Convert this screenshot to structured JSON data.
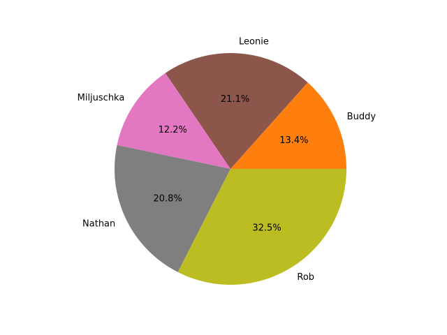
{
  "chart_data": {
    "type": "pie",
    "title": "",
    "labels": [
      "Buddy",
      "Leonie",
      "Miljuschka",
      "Nathan",
      "Rob"
    ],
    "values": [
      13.4,
      21.1,
      12.2,
      20.8,
      32.5
    ],
    "value_labels": [
      "13.4%",
      "21.1%",
      "12.2%",
      "20.8%",
      "32.5%"
    ],
    "colors": [
      "#ff7f0e",
      "#8c564b",
      "#e377c2",
      "#7f7f7f",
      "#bcbd22"
    ],
    "start_angle_deg": 0,
    "direction": "counterclockwise",
    "legend": "none"
  }
}
